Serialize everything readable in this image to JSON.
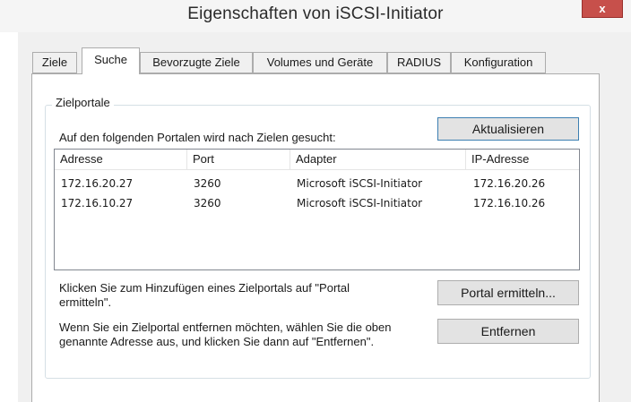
{
  "window": {
    "title": "Eigenschaften von iSCSI-Initiator",
    "close_label": "x"
  },
  "tabs": [
    {
      "label": "Ziele",
      "active": false
    },
    {
      "label": "Suche",
      "active": true
    },
    {
      "label": "Bevorzugte Ziele",
      "active": false
    },
    {
      "label": "Volumes und Geräte",
      "active": false
    },
    {
      "label": "RADIUS",
      "active": false
    },
    {
      "label": "Konfiguration",
      "active": false
    }
  ],
  "target_portals": {
    "group_label": "Zielportale",
    "description": "Auf den folgenden Portalen wird nach Zielen gesucht:",
    "refresh_label": "Aktualisieren",
    "columns": [
      "Adresse",
      "Port",
      "Adapter",
      "IP-Adresse"
    ],
    "rows": [
      {
        "address": "172.16.20.27",
        "port": "3260",
        "adapter": "Microsoft iSCSI-Initiator",
        "ip": "172.16.20.26"
      },
      {
        "address": "172.16.10.27",
        "port": "3260",
        "adapter": "Microsoft iSCSI-Initiator",
        "ip": "172.16.10.26"
      }
    ],
    "discover_hint": "Klicken Sie zum Hinzufügen eines Zielportals auf \"Portal ermitteln\".",
    "discover_label": "Portal ermitteln...",
    "remove_hint": "Wenn Sie ein Zielportal entfernen möchten, wählen Sie die oben genannte Adresse aus, und klicken Sie dann auf \"Entfernen\".",
    "remove_label": "Entfernen"
  }
}
